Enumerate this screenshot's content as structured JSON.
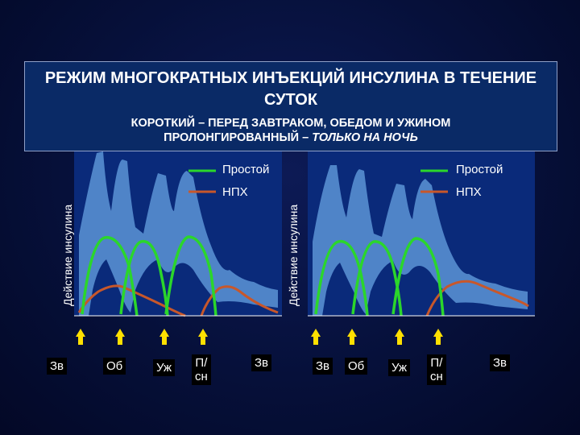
{
  "title": {
    "main": "РЕЖИМ МНОГОКРАТНЫХ ИНЪЕКЦИЙ ИНСУЛИНА В ТЕЧЕНИЕ СУТОК",
    "line1": "КОРОТКИЙ – ПЕРЕД ЗАВТРАКОМ, ОБЕДОМ И УЖИНОМ",
    "line2_prefix": "ПРОЛОНГИРОВАННЫЙ – ",
    "line2_emphasis": "ТОЛЬКО НА НОЧЬ"
  },
  "colors": {
    "simple_insulin": "#2bd62b",
    "nph_insulin": "#c8572a",
    "glucose_band_light": "#4f84c8",
    "plot_background": "#0a2a7a",
    "arrow": "#ffe000"
  },
  "left_panel": {
    "ylabel": "Действие инсулина",
    "legend": [
      {
        "label": "Простой",
        "color": "#2bd62b"
      },
      {
        "label": "НПХ",
        "color": "#c8572a"
      }
    ],
    "x_labels": [
      "Зв",
      "Об",
      "Уж",
      "П/сн",
      "Зв"
    ]
  },
  "right_panel": {
    "ylabel": "Действие инсулина",
    "legend": [
      {
        "label": "Простой",
        "color": "#2bd62b"
      },
      {
        "label": "НПХ",
        "color": "#c8572a"
      }
    ],
    "x_labels": [
      "Зв",
      "Об",
      "Уж",
      "П/сн",
      "Зв"
    ]
  }
}
